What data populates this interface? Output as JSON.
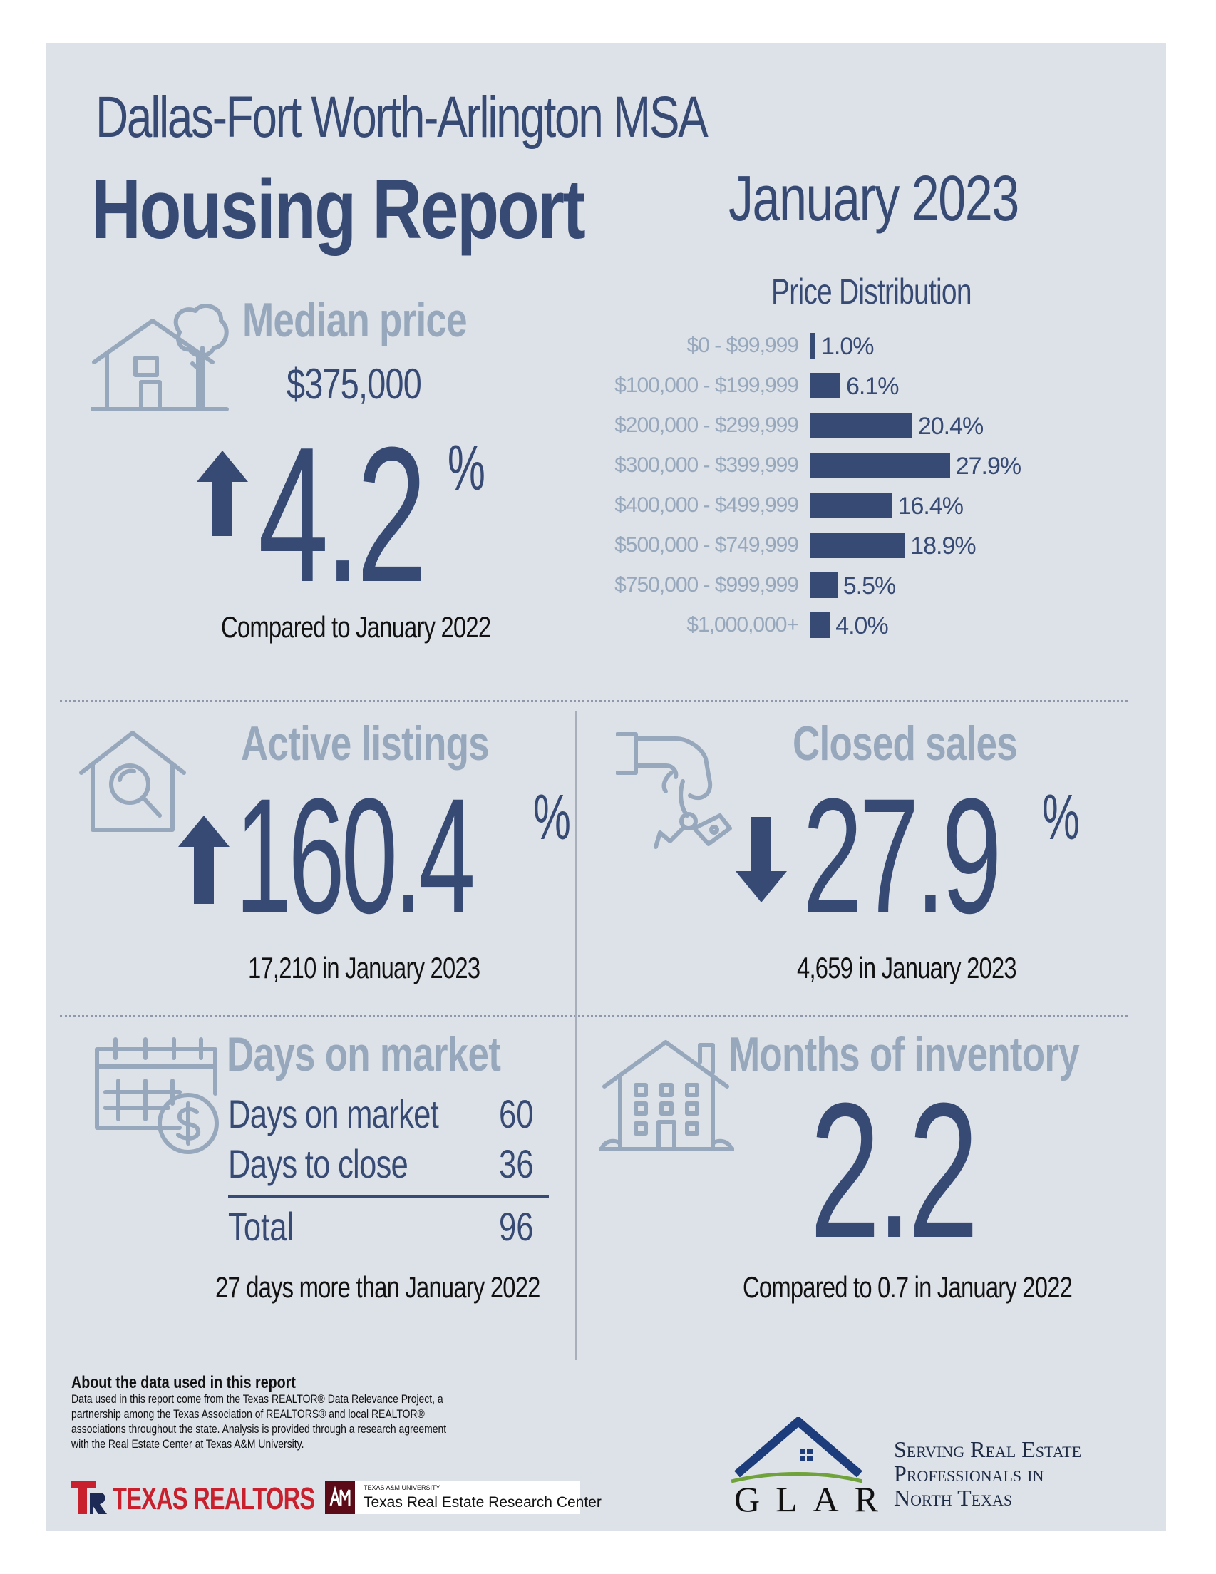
{
  "header": {
    "region": "Dallas-Fort Worth-Arlington MSA",
    "title": "Housing Report",
    "period": "January 2023"
  },
  "median_price": {
    "label": "Median price",
    "value": "$375,000",
    "change": "4.2",
    "unit": "%",
    "direction": "up",
    "note": "Compared to January 2022",
    "icon": "house-with-tree-icon"
  },
  "price_distribution": {
    "title": "Price Distribution"
  },
  "chart_data": {
    "type": "bar",
    "orientation": "horizontal",
    "title": "Price Distribution",
    "categories": [
      "$0 - $99,999",
      "$100,000 - $199,999",
      "$200,000 - $299,999",
      "$300,000 - $399,999",
      "$400,000 - $499,999",
      "$500,000 - $749,999",
      "$750,000 - $999,999",
      "$1,000,000+"
    ],
    "values": [
      1.0,
      6.1,
      20.4,
      27.9,
      16.4,
      18.9,
      5.5,
      4.0
    ],
    "value_labels": [
      "1.0%",
      "6.1%",
      "20.4%",
      "27.9%",
      "16.4%",
      "18.9%",
      "5.5%",
      "4.0%"
    ],
    "unit": "%",
    "bar_color": "#364a74"
  },
  "active_listings": {
    "label": "Active listings",
    "change": "160.4",
    "unit": "%",
    "direction": "up",
    "note": "17,210 in January 2023",
    "icon": "house-search-icon"
  },
  "closed_sales": {
    "label": "Closed sales",
    "change": "27.9",
    "unit": "%",
    "direction": "down",
    "note": "4,659 in January 2023",
    "icon": "hand-keys-icon"
  },
  "days_on_market": {
    "label": "Days on market",
    "rows": [
      {
        "label": "Days on market",
        "value": "60"
      },
      {
        "label": "Days to close",
        "value": "36"
      }
    ],
    "total_label": "Total",
    "total_value": "96",
    "note": "27 days more than January 2022",
    "icon": "calendar-dollar-icon"
  },
  "months_inventory": {
    "label": "Months of inventory",
    "value": "2.2",
    "note": "Compared to 0.7 in January 2022",
    "icon": "apartment-building-icon"
  },
  "footer": {
    "about_title": "About the data used in this report",
    "about_lines": [
      "Data used in this report come from the Texas REALTOR® Data Relevance Project, a",
      "partnership among the Texas Association of REALTORS® and local REALTOR®",
      "associations throughout the state. Analysis is provided through a research agreement",
      "with the Real Estate Center at Texas A&M University."
    ],
    "texas_realtors": "TEXAS REALTORS",
    "tamu_small": "TEXAS A&M UNIVERSITY",
    "tamu_center": "Texas Real Estate Research Center",
    "glar": "GLAR",
    "glar_tagline": [
      "Serving Real Estate",
      "Professionals in",
      "North Texas"
    ]
  },
  "colors": {
    "navy": "#364a74",
    "muted": "#97a8bd",
    "background": "#dde1e8",
    "glar_green": "#6fa23a"
  }
}
